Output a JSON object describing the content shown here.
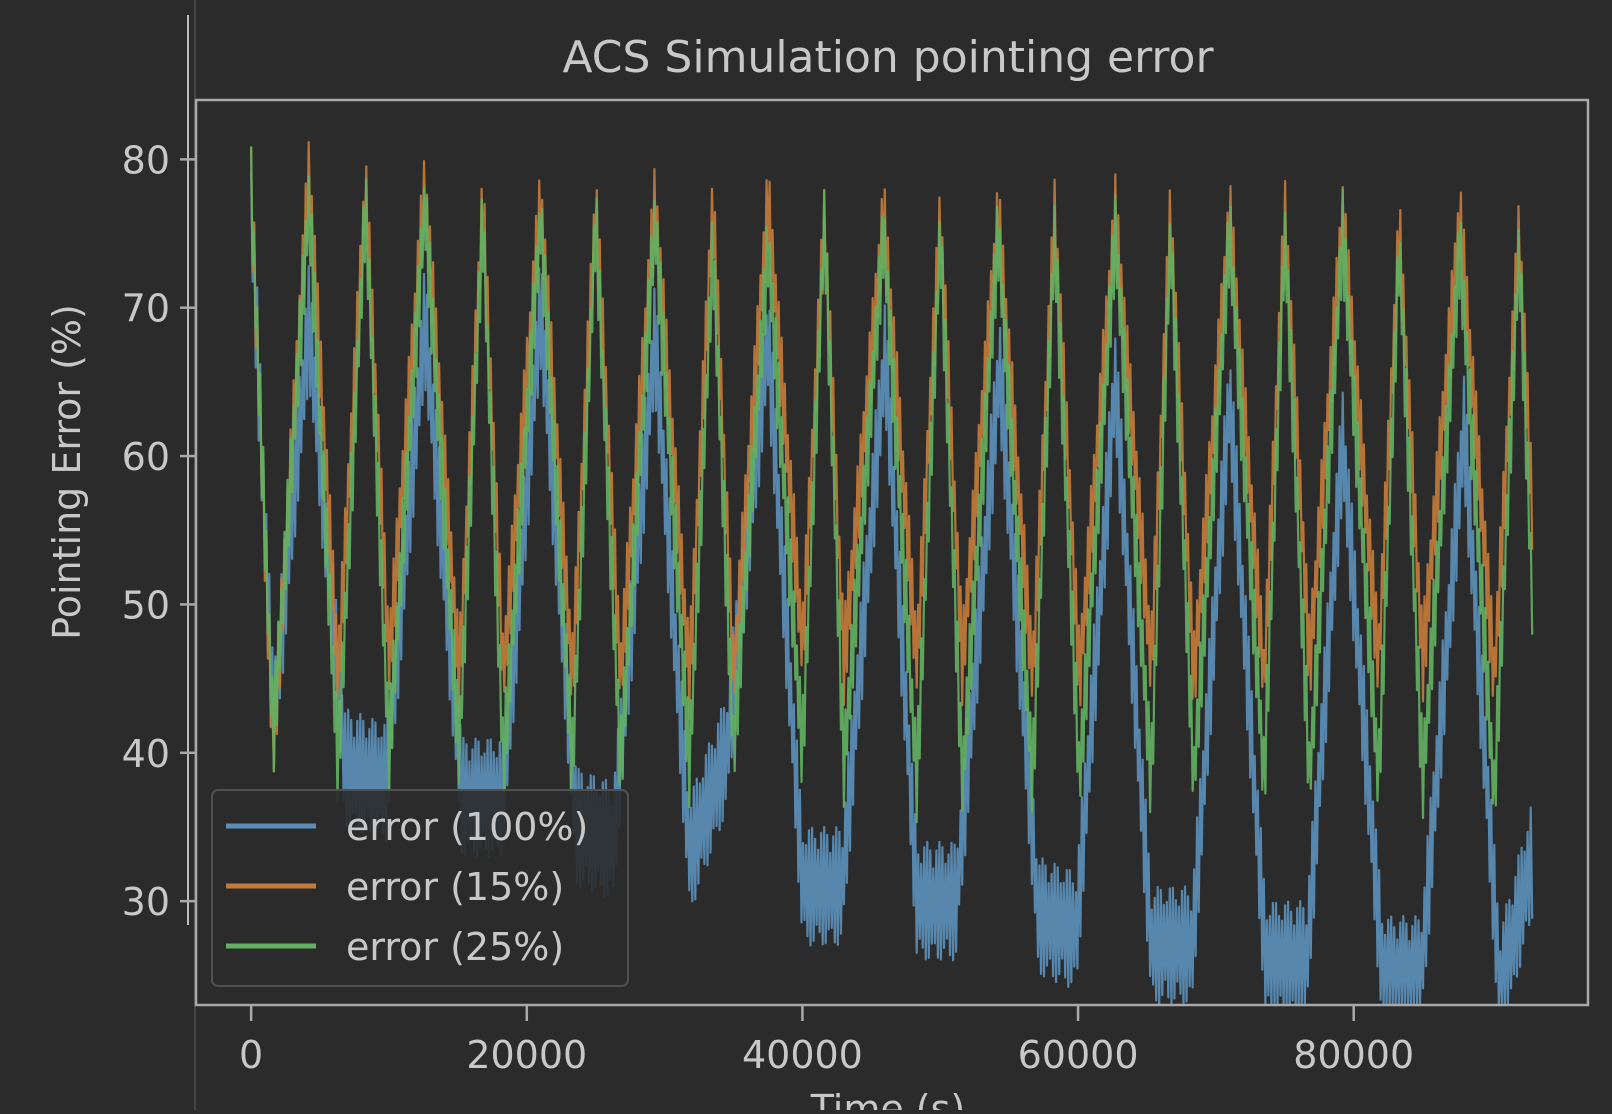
{
  "chart_data": {
    "type": "line",
    "title": "ACS Simulation pointing error",
    "xlabel": "Time (s)",
    "ylabel": "Pointing Error (%)",
    "xlim": [
      -4000,
      97000
    ],
    "ylim": [
      23,
      84
    ],
    "x_ticks": [
      0,
      20000,
      40000,
      60000,
      80000
    ],
    "y_ticks": [
      30,
      40,
      50,
      60,
      70,
      80
    ],
    "grid": false,
    "legend_position": "lower-left",
    "colors": {
      "background": "#2b2b2b",
      "axes_frame": "#a9a9a9",
      "text": "#c8c8c8"
    },
    "series": [
      {
        "name": "error (100%)",
        "color": "#5b8fb9",
        "band_amplitude": 4,
        "envelope": {
          "x": [
            0,
            1600,
            4200,
            6800,
            9800,
            12600,
            15300,
            18300,
            21000,
            23600,
            26300,
            29300,
            31800,
            34500,
            37500,
            40000,
            42900,
            46000,
            48300,
            51200,
            54300,
            57100,
            59900,
            62700,
            65300,
            68300,
            71000,
            73600,
            76600,
            79200,
            82100,
            84900,
            88000,
            90600,
            93000
          ],
          "y": [
            77,
            42,
            69,
            39,
            38,
            69,
            37,
            37,
            70,
            35,
            34,
            68,
            33,
            40,
            68,
            31,
            31,
            67,
            30,
            30,
            66,
            29,
            28,
            65,
            27,
            27,
            64,
            26,
            26,
            61,
            25,
            25,
            62,
            24,
            33
          ]
        }
      },
      {
        "name": "error (15%)",
        "color": "#c27b3b",
        "band_amplitude": 3,
        "envelope": {
          "x": [
            0,
            1600,
            4200,
            6300,
            8300,
            10000,
            12600,
            15100,
            16800,
            18300,
            21000,
            23300,
            25000,
            26800,
            29300,
            31800,
            33500,
            35000,
            37500,
            40000,
            41600,
            43000,
            45900,
            48300,
            50000,
            51600,
            54200,
            56700,
            58300,
            60100,
            62700,
            65300,
            66700,
            68400,
            71000,
            73500,
            75000,
            76800,
            79200,
            81800,
            83300,
            85000,
            87700,
            90200,
            92000,
            93000
          ],
          "y": [
            78,
            40,
            79,
            45,
            78,
            46,
            78,
            45,
            77,
            45,
            77,
            45,
            77,
            45,
            77,
            45,
            77,
            45,
            77,
            47,
            76,
            46,
            76,
            46,
            76,
            46,
            76,
            45,
            76,
            45,
            76,
            46,
            76,
            45,
            76,
            45,
            76,
            46,
            76,
            46,
            75,
            46,
            76,
            45,
            75,
            55
          ]
        }
      },
      {
        "name": "error (25%)",
        "color": "#62b062",
        "band_amplitude": 3,
        "envelope": {
          "x": [
            0,
            1600,
            4200,
            6300,
            8300,
            10000,
            12600,
            15100,
            16800,
            18300,
            21000,
            23300,
            25000,
            26800,
            29300,
            31800,
            33500,
            35000,
            37500,
            40000,
            41600,
            43000,
            45900,
            48300,
            50000,
            51600,
            54200,
            56700,
            58300,
            60100,
            62700,
            65300,
            66700,
            68400,
            71000,
            73500,
            75000,
            76800,
            79200,
            81800,
            83300,
            85000,
            87700,
            90200,
            92000,
            93000
          ],
          "y": [
            78,
            41,
            77,
            39,
            77,
            40,
            77,
            40,
            76,
            39,
            76,
            39,
            76,
            39,
            76,
            39,
            74,
            40,
            74,
            40,
            76,
            39,
            75,
            38,
            75,
            38,
            75,
            38,
            75,
            38,
            75,
            38,
            75,
            38,
            75,
            38,
            75,
            38,
            75,
            38,
            74,
            38,
            74,
            37,
            74,
            49
          ]
        }
      }
    ]
  }
}
